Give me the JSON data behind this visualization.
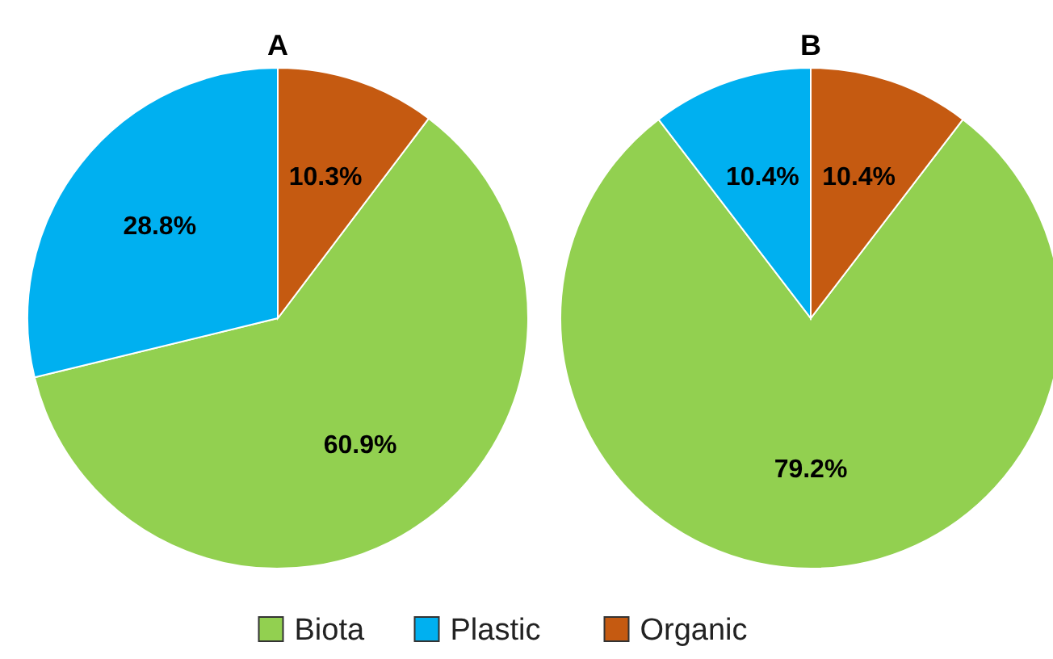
{
  "chart_data": [
    {
      "type": "pie",
      "title": "A",
      "categories": [
        "Biota",
        "Plastic",
        "Organic"
      ],
      "values": [
        60.9,
        28.8,
        10.3
      ],
      "value_labels": [
        "60.9%",
        "28.8%",
        "10.3%"
      ],
      "colors": [
        "#92d050",
        "#00b0f0",
        "#c55a11"
      ],
      "legend": "bottom"
    },
    {
      "type": "pie",
      "title": "B",
      "values": [
        79.2,
        10.4,
        10.4
      ],
      "value_labels": [
        "79.2%",
        "10.4%",
        "10.4%"
      ],
      "colors": [
        "#92d050",
        "#00b0f0",
        "#c55a11"
      ]
    }
  ]
}
